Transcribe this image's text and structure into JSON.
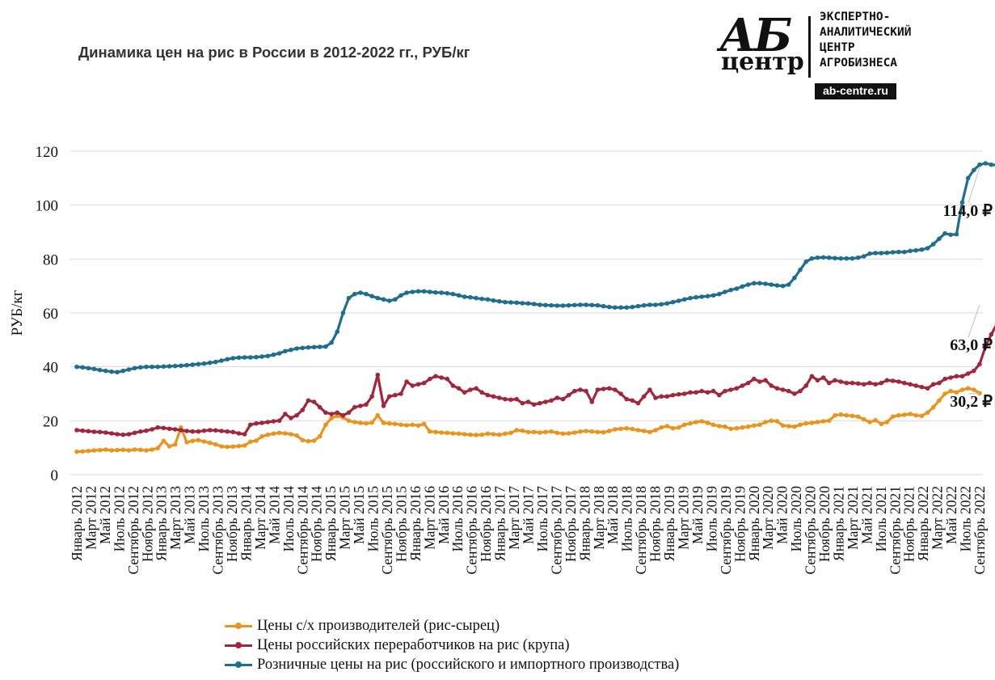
{
  "title": "Динамика цен на рис в России в 2012-2022 гг., РУБ/кг",
  "logo": {
    "mark": "АБ",
    "mark_sub": "центр",
    "org_lines": [
      "ЭКСПЕРТНО-",
      "АНАЛИТИЧЕСКИЙ",
      "ЦЕНТР",
      "АГРОБИЗНЕСА"
    ],
    "url": "ab-centre.ru"
  },
  "chart_data": {
    "type": "line",
    "title": "Динамика цен на рис в России в 2012-2022 гг., РУБ/кг",
    "xlabel": "",
    "ylabel": "РУБ/кг",
    "ylim": [
      0,
      120
    ],
    "yticks": [
      "0",
      "20",
      "40",
      "60",
      "80",
      "100",
      "120"
    ],
    "grid": "horizontal",
    "legend_position": "bottom",
    "x_start": "Январь 2012",
    "x_end": "Сентябрь 2022",
    "x_labels": [
      "Январь 2012",
      "Март 2012",
      "Май 2012",
      "Июль 2012",
      "Сентябрь 2012",
      "Ноябрь 2012",
      "Январь 2013",
      "Март 2013",
      "Май 2013",
      "Июль 2013",
      "Сентябрь 2013",
      "Ноябрь 2013",
      "Январь 2014",
      "Март 2014",
      "Май 2014",
      "Июль 2014",
      "Сентябрь 2014",
      "Ноябрь 2014",
      "Январь 2015",
      "Март 2015",
      "Май 2015",
      "Июль 2015",
      "Сентябрь 2015",
      "Ноябрь 2015",
      "Январь 2016",
      "Март 2016",
      "Май 2016",
      "Июль 2016",
      "Сентябрь 2016",
      "Ноябрь 2016",
      "Январь 2017",
      "Март 2017",
      "Май 2017",
      "Июль 2017",
      "Сентябрь 2017",
      "Ноябрь 2017",
      "Январь 2018",
      "Март 2018",
      "Май 2018",
      "Июль 2018",
      "Сентябрь 2018",
      "Ноябрь 2018",
      "Январь 2019",
      "Март 2019",
      "Май 2019",
      "Июль 2019",
      "Сентябрь 2019",
      "Ноябрь 2019",
      "Январь 2020",
      "Март 2020",
      "Май 2020",
      "Июль 2020",
      "Сентябрь 2020",
      "Ноябрь 2020",
      "Январь 2021",
      "Март 2021",
      "Май 2021",
      "Июль 2021",
      "Сентябрь 2021",
      "Ноябрь 2021",
      "Январь 2022",
      "Март 2022",
      "Май 2022",
      "Июль 2022",
      "Сентябрь 2022"
    ],
    "series": [
      {
        "name": "Цены с/х производителей (рис-сырец)",
        "color": "#E8951F",
        "end_label": "30,2 ₽",
        "values": [
          8.5,
          8.6,
          8.8,
          9.0,
          9.1,
          9.3,
          9.0,
          9.1,
          9.2,
          9.0,
          9.3,
          9.2,
          9.0,
          9.3,
          9.8,
          12.5,
          10.5,
          11.2,
          17.5,
          12.0,
          12.5,
          12.8,
          12.3,
          11.8,
          11.2,
          10.5,
          10.3,
          10.4,
          10.6,
          10.8,
          12.2,
          12.6,
          14.2,
          14.8,
          15.2,
          15.5,
          15.3,
          15.0,
          14.5,
          12.8,
          12.4,
          12.6,
          14.2,
          18.5,
          21.0,
          21.8,
          21.2,
          20.0,
          19.5,
          19.2,
          19.0,
          19.3,
          22.0,
          19.2,
          19.0,
          18.8,
          18.5,
          18.3,
          18.5,
          18.2,
          18.8,
          16.0,
          15.8,
          15.6,
          15.5,
          15.3,
          15.2,
          15.0,
          14.8,
          14.7,
          14.8,
          15.2,
          15.0,
          14.8,
          15.2,
          15.5,
          16.5,
          16.3,
          15.8,
          15.8,
          15.6,
          15.8,
          16.0,
          15.5,
          15.2,
          15.3,
          15.6,
          16.0,
          16.2,
          16.0,
          15.8,
          15.7,
          16.2,
          16.8,
          17.0,
          17.2,
          16.9,
          16.5,
          16.2,
          15.8,
          16.5,
          17.5,
          18.0,
          17.2,
          17.5,
          18.5,
          19.0,
          19.5,
          19.8,
          19.2,
          18.5,
          18.0,
          17.8,
          17.0,
          17.2,
          17.5,
          17.8,
          18.2,
          18.5,
          19.5,
          20.0,
          19.8,
          18.2,
          18.0,
          17.8,
          18.5,
          19.0,
          19.2,
          19.5,
          19.8,
          20.0,
          22.0,
          22.3,
          22.0,
          21.8,
          21.5,
          20.5,
          19.5,
          20.2,
          18.8,
          19.5,
          21.5,
          22.0,
          22.2,
          22.5,
          22.0,
          21.8,
          23.0,
          25.0,
          27.5,
          30.0,
          31.0,
          30.5,
          31.5,
          32.0,
          31.5,
          30.2
        ]
      },
      {
        "name": "Цены российских переработчиков на рис (крупа)",
        "color": "#A0283C",
        "end_label": "63,0 ₽",
        "values": [
          16.5,
          16.3,
          16.1,
          15.9,
          15.8,
          15.6,
          15.3,
          15.0,
          14.8,
          15.0,
          15.5,
          16.0,
          16.3,
          16.8,
          17.5,
          17.3,
          17.0,
          16.8,
          16.5,
          16.2,
          16.0,
          16.0,
          16.3,
          16.5,
          16.4,
          16.2,
          16.0,
          15.8,
          15.3,
          15.0,
          18.5,
          19.0,
          19.2,
          19.5,
          19.8,
          20.0,
          22.5,
          21.0,
          22.0,
          24.0,
          27.5,
          27.0,
          25.0,
          23.0,
          22.5,
          23.0,
          22.0,
          23.0,
          25.0,
          25.5,
          26.0,
          29.0,
          37.0,
          25.5,
          29.0,
          29.5,
          30.0,
          34.5,
          33.0,
          33.5,
          34.0,
          35.5,
          36.5,
          36.0,
          35.5,
          33.0,
          32.0,
          30.5,
          31.5,
          32.0,
          30.5,
          29.5,
          29.0,
          28.5,
          28.0,
          27.8,
          28.0,
          26.5,
          27.0,
          26.0,
          26.5,
          27.0,
          27.5,
          28.5,
          28.0,
          29.5,
          31.0,
          31.5,
          31.0,
          27.0,
          31.5,
          31.8,
          32.0,
          31.5,
          30.0,
          28.0,
          27.5,
          26.5,
          29.0,
          31.5,
          28.5,
          29.0,
          29.0,
          29.5,
          29.8,
          30.0,
          30.5,
          30.5,
          31.0,
          30.5,
          31.0,
          29.5,
          31.0,
          31.5,
          32.0,
          33.0,
          34.0,
          35.5,
          34.5,
          35.0,
          33.0,
          32.0,
          31.5,
          31.0,
          30.0,
          31.0,
          33.0,
          36.5,
          35.0,
          36.0,
          34.0,
          35.0,
          34.5,
          34.0,
          34.0,
          33.8,
          33.5,
          34.0,
          33.5,
          34.0,
          35.0,
          34.8,
          34.5,
          34.0,
          33.5,
          33.0,
          32.5,
          32.0,
          33.5,
          34.0,
          35.5,
          36.0,
          36.5,
          36.5,
          37.5,
          38.5,
          41.0,
          47.5,
          52.0,
          56.0,
          58.5,
          60.0,
          63.0
        ]
      },
      {
        "name": "Розничные цены на рис (российского и импортного производства)",
        "color": "#1F6E8C",
        "end_label": "114,0 ₽",
        "values": [
          40.0,
          39.8,
          39.5,
          39.2,
          38.8,
          38.5,
          38.2,
          38.0,
          38.5,
          39.0,
          39.5,
          39.8,
          40.0,
          40.0,
          40.0,
          40.1,
          40.2,
          40.3,
          40.4,
          40.6,
          40.8,
          41.0,
          41.2,
          41.5,
          41.8,
          42.3,
          42.8,
          43.2,
          43.4,
          43.5,
          43.5,
          43.6,
          43.8,
          44.0,
          44.5,
          45.0,
          45.8,
          46.3,
          46.8,
          47.0,
          47.2,
          47.3,
          47.4,
          47.5,
          49.0,
          53.0,
          60.0,
          65.5,
          67.0,
          67.5,
          67.0,
          66.2,
          65.5,
          65.0,
          64.5,
          65.0,
          66.5,
          67.5,
          67.8,
          68.0,
          68.0,
          67.8,
          67.6,
          67.5,
          67.3,
          67.0,
          66.5,
          66.0,
          65.8,
          65.5,
          65.2,
          65.0,
          64.6,
          64.3,
          64.0,
          63.9,
          63.8,
          63.6,
          63.5,
          63.3,
          63.0,
          62.9,
          62.8,
          62.7,
          62.7,
          62.8,
          62.9,
          63.0,
          63.0,
          62.9,
          62.8,
          62.5,
          62.2,
          62.0,
          62.0,
          62.0,
          62.2,
          62.5,
          62.8,
          63.0,
          63.0,
          63.2,
          63.5,
          64.0,
          64.5,
          65.0,
          65.5,
          65.8,
          66.0,
          66.2,
          66.5,
          67.0,
          67.8,
          68.5,
          69.0,
          69.8,
          70.5,
          71.0,
          71.0,
          70.8,
          70.5,
          70.2,
          70.0,
          70.5,
          73.0,
          76.0,
          79.0,
          80.2,
          80.5,
          80.6,
          80.5,
          80.3,
          80.2,
          80.2,
          80.2,
          80.5,
          81.0,
          82.0,
          82.2,
          82.2,
          82.3,
          82.5,
          82.6,
          82.6,
          83.0,
          83.2,
          83.5,
          84.0,
          85.5,
          87.5,
          89.5,
          89.0,
          89.2,
          101.0,
          110.0,
          113.0,
          115.0,
          115.5,
          115.0,
          114.8,
          114.0
        ]
      }
    ]
  }
}
